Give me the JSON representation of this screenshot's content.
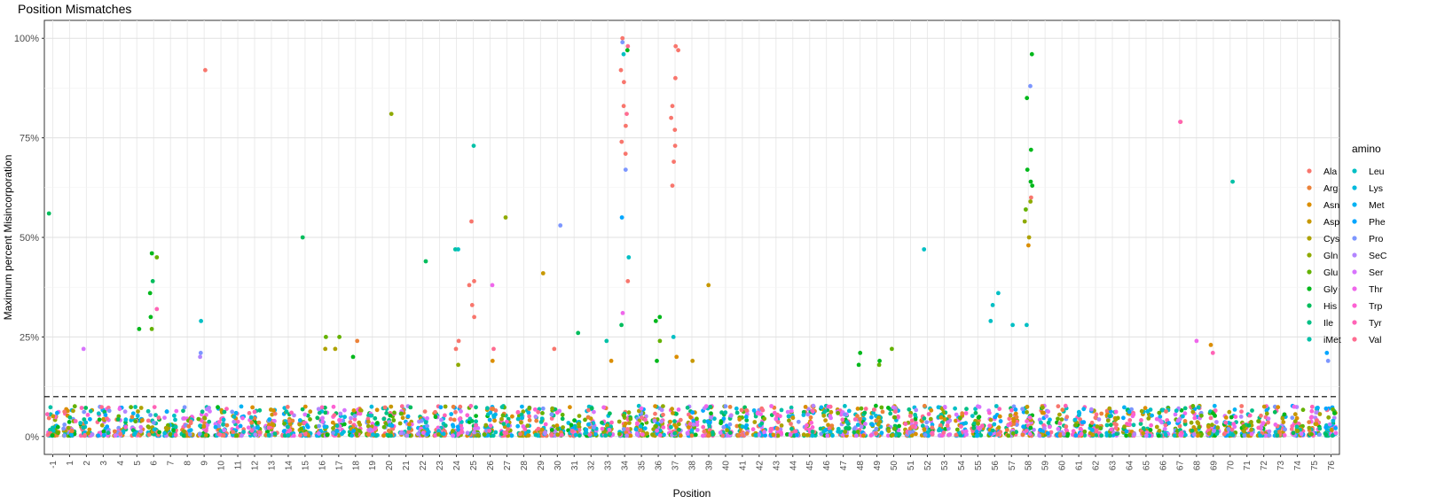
{
  "chart_data": {
    "type": "scatter",
    "title": "Position Mismatches",
    "xlabel": "Position",
    "ylabel": "Maximum percent Misincorporation",
    "ylim": [
      -0.045,
      1.045
    ],
    "y_ticks": [
      0,
      0.25,
      0.5,
      0.75,
      1.0
    ],
    "y_tick_labels": [
      "0%",
      "25%",
      "50%",
      "75%",
      "100%"
    ],
    "categories": [
      "-1",
      "1",
      "2",
      "3",
      "4",
      "5",
      "6",
      "7",
      "8",
      "9",
      "10",
      "11",
      "12",
      "13",
      "14",
      "15",
      "16",
      "17",
      "18",
      "19",
      "20",
      "21",
      "22",
      "23",
      "24",
      "25",
      "26",
      "27",
      "28",
      "29",
      "30",
      "31",
      "32",
      "33",
      "34",
      "35",
      "36",
      "37",
      "38",
      "39",
      "40",
      "41",
      "42",
      "43",
      "44",
      "45",
      "46",
      "47",
      "48",
      "49",
      "50",
      "51",
      "52",
      "53",
      "54",
      "55",
      "56",
      "57",
      "58",
      "59",
      "60",
      "61",
      "62",
      "63",
      "64",
      "65",
      "66",
      "67",
      "68",
      "69",
      "70",
      "71",
      "72",
      "73",
      "74",
      "75",
      "76"
    ],
    "threshold_line": 0.1,
    "grid": true,
    "legend": {
      "title": "amino",
      "position": "right",
      "entries": [
        {
          "name": "Ala",
          "color": "#F8766D"
        },
        {
          "name": "Arg",
          "color": "#EC8239"
        },
        {
          "name": "Asn",
          "color": "#DB8E00"
        },
        {
          "name": "Asp",
          "color": "#C79800"
        },
        {
          "name": "Cys",
          "color": "#AEA200"
        },
        {
          "name": "Gln",
          "color": "#8FAA00"
        },
        {
          "name": "Glu",
          "color": "#64B200"
        },
        {
          "name": "Gly",
          "color": "#00B81B"
        },
        {
          "name": "His",
          "color": "#00BD5C"
        },
        {
          "name": "Ile",
          "color": "#00C085"
        },
        {
          "name": "iMet",
          "color": "#00C1A7"
        },
        {
          "name": "Leu",
          "color": "#00BFC4"
        },
        {
          "name": "Lys",
          "color": "#00BADE"
        },
        {
          "name": "Met",
          "color": "#00B2F3"
        },
        {
          "name": "Phe",
          "color": "#00A6FF"
        },
        {
          "name": "Pro",
          "color": "#7C96FF"
        },
        {
          "name": "SeC",
          "color": "#B385FF"
        },
        {
          "name": "Ser",
          "color": "#D874FD"
        },
        {
          "name": "Thr",
          "color": "#EF67EB"
        },
        {
          "name": "Trp",
          "color": "#FD61D3"
        },
        {
          "name": "Tyr",
          "color": "#FF63B6"
        },
        {
          "name": "Val",
          "color": "#FF6C91"
        }
      ]
    },
    "notable_points": [
      {
        "x": "-1",
        "y": 0.56,
        "series": "His"
      },
      {
        "x": "6",
        "y": 0.46,
        "series": "Gly"
      },
      {
        "x": "6",
        "y": 0.45,
        "series": "Glu"
      },
      {
        "x": "6",
        "y": 0.39,
        "series": "His"
      },
      {
        "x": "6",
        "y": 0.36,
        "series": "Gly"
      },
      {
        "x": "6",
        "y": 0.32,
        "series": "Tyr"
      },
      {
        "x": "6",
        "y": 0.3,
        "series": "Gly"
      },
      {
        "x": "6",
        "y": 0.27,
        "series": "Glu"
      },
      {
        "x": "5",
        "y": 0.27,
        "series": "Gly"
      },
      {
        "x": "9",
        "y": 0.92,
        "series": "Ala"
      },
      {
        "x": "9",
        "y": 0.29,
        "series": "Leu"
      },
      {
        "x": "9",
        "y": 0.21,
        "series": "Pro"
      },
      {
        "x": "9",
        "y": 0.2,
        "series": "SeC"
      },
      {
        "x": "2",
        "y": 0.22,
        "series": "Ser"
      },
      {
        "x": "15",
        "y": 0.5,
        "series": "His"
      },
      {
        "x": "16",
        "y": 0.25,
        "series": "Glu"
      },
      {
        "x": "16",
        "y": 0.22,
        "series": "Cys"
      },
      {
        "x": "17",
        "y": 0.25,
        "series": "Glu"
      },
      {
        "x": "17",
        "y": 0.22,
        "series": "Cys"
      },
      {
        "x": "18",
        "y": 0.24,
        "series": "Arg"
      },
      {
        "x": "18",
        "y": 0.2,
        "series": "Gly"
      },
      {
        "x": "20",
        "y": 0.81,
        "series": "Gln"
      },
      {
        "x": "22",
        "y": 0.44,
        "series": "His"
      },
      {
        "x": "24",
        "y": 0.47,
        "series": "Leu"
      },
      {
        "x": "24",
        "y": 0.47,
        "series": "iMet"
      },
      {
        "x": "24",
        "y": 0.24,
        "series": "Ala"
      },
      {
        "x": "24",
        "y": 0.22,
        "series": "Ala"
      },
      {
        "x": "24",
        "y": 0.18,
        "series": "Gln"
      },
      {
        "x": "25",
        "y": 0.73,
        "series": "iMet"
      },
      {
        "x": "25",
        "y": 0.54,
        "series": "Ala"
      },
      {
        "x": "25",
        "y": 0.39,
        "series": "Ala"
      },
      {
        "x": "25",
        "y": 0.38,
        "series": "Ala"
      },
      {
        "x": "25",
        "y": 0.33,
        "series": "Ala"
      },
      {
        "x": "25",
        "y": 0.3,
        "series": "Ala"
      },
      {
        "x": "26",
        "y": 0.38,
        "series": "Thr"
      },
      {
        "x": "26",
        "y": 0.22,
        "series": "Val"
      },
      {
        "x": "26",
        "y": 0.19,
        "series": "Asn"
      },
      {
        "x": "27",
        "y": 0.55,
        "series": "Gln"
      },
      {
        "x": "29",
        "y": 0.41,
        "series": "Asp"
      },
      {
        "x": "30",
        "y": 0.53,
        "series": "Pro"
      },
      {
        "x": "30",
        "y": 0.22,
        "series": "Ala"
      },
      {
        "x": "31",
        "y": 0.26,
        "series": "His"
      },
      {
        "x": "34",
        "y": 1.0,
        "series": "Ala"
      },
      {
        "x": "34",
        "y": 0.99,
        "series": "Pro"
      },
      {
        "x": "34",
        "y": 0.98,
        "series": "Val"
      },
      {
        "x": "34",
        "y": 0.97,
        "series": "Gly"
      },
      {
        "x": "34",
        "y": 0.96,
        "series": "Leu"
      },
      {
        "x": "34",
        "y": 0.92,
        "series": "Ala"
      },
      {
        "x": "34",
        "y": 0.89,
        "series": "Ala"
      },
      {
        "x": "34",
        "y": 0.83,
        "series": "Ala"
      },
      {
        "x": "34",
        "y": 0.81,
        "series": "Val"
      },
      {
        "x": "34",
        "y": 0.78,
        "series": "Ala"
      },
      {
        "x": "34",
        "y": 0.74,
        "series": "Ala"
      },
      {
        "x": "34",
        "y": 0.71,
        "series": "Ala"
      },
      {
        "x": "34",
        "y": 0.67,
        "series": "Pro"
      },
      {
        "x": "34",
        "y": 0.55,
        "series": "Phe"
      },
      {
        "x": "34",
        "y": 0.45,
        "series": "Leu"
      },
      {
        "x": "34",
        "y": 0.39,
        "series": "Ala"
      },
      {
        "x": "34",
        "y": 0.31,
        "series": "Thr"
      },
      {
        "x": "34",
        "y": 0.28,
        "series": "His"
      },
      {
        "x": "33",
        "y": 0.24,
        "series": "iMet"
      },
      {
        "x": "33",
        "y": 0.19,
        "series": "Asn"
      },
      {
        "x": "36",
        "y": 0.3,
        "series": "Gly"
      },
      {
        "x": "36",
        "y": 0.29,
        "series": "Gly"
      },
      {
        "x": "36",
        "y": 0.24,
        "series": "Glu"
      },
      {
        "x": "36",
        "y": 0.19,
        "series": "Gly"
      },
      {
        "x": "37",
        "y": 0.98,
        "series": "Ala"
      },
      {
        "x": "37",
        "y": 0.97,
        "series": "Ala"
      },
      {
        "x": "37",
        "y": 0.9,
        "series": "Ala"
      },
      {
        "x": "37",
        "y": 0.83,
        "series": "Ala"
      },
      {
        "x": "37",
        "y": 0.8,
        "series": "Ala"
      },
      {
        "x": "37",
        "y": 0.77,
        "series": "Ala"
      },
      {
        "x": "37",
        "y": 0.73,
        "series": "Ala"
      },
      {
        "x": "37",
        "y": 0.69,
        "series": "Ala"
      },
      {
        "x": "37",
        "y": 0.63,
        "series": "Ala"
      },
      {
        "x": "37",
        "y": 0.25,
        "series": "Leu"
      },
      {
        "x": "37",
        "y": 0.2,
        "series": "Asn"
      },
      {
        "x": "38",
        "y": 0.19,
        "series": "Asp"
      },
      {
        "x": "39",
        "y": 0.38,
        "series": "Asp"
      },
      {
        "x": "48",
        "y": 0.21,
        "series": "Gly"
      },
      {
        "x": "48",
        "y": 0.18,
        "series": "Gly"
      },
      {
        "x": "49",
        "y": 0.19,
        "series": "Gly"
      },
      {
        "x": "49",
        "y": 0.18,
        "series": "Glu"
      },
      {
        "x": "50",
        "y": 0.22,
        "series": "Glu"
      },
      {
        "x": "52",
        "y": 0.47,
        "series": "Leu"
      },
      {
        "x": "56",
        "y": 0.36,
        "series": "Leu"
      },
      {
        "x": "56",
        "y": 0.33,
        "series": "Leu"
      },
      {
        "x": "56",
        "y": 0.29,
        "series": "Leu"
      },
      {
        "x": "57",
        "y": 0.28,
        "series": "Leu"
      },
      {
        "x": "58",
        "y": 0.96,
        "series": "Gly"
      },
      {
        "x": "58",
        "y": 0.88,
        "series": "Pro"
      },
      {
        "x": "58",
        "y": 0.85,
        "series": "Gly"
      },
      {
        "x": "58",
        "y": 0.72,
        "series": "Gly"
      },
      {
        "x": "58",
        "y": 0.67,
        "series": "Gly"
      },
      {
        "x": "58",
        "y": 0.64,
        "series": "Gly"
      },
      {
        "x": "58",
        "y": 0.63,
        "series": "Gly"
      },
      {
        "x": "58",
        "y": 0.6,
        "series": "Ala"
      },
      {
        "x": "58",
        "y": 0.59,
        "series": "Gln"
      },
      {
        "x": "58",
        "y": 0.57,
        "series": "Glu"
      },
      {
        "x": "58",
        "y": 0.54,
        "series": "Gln"
      },
      {
        "x": "58",
        "y": 0.5,
        "series": "Cys"
      },
      {
        "x": "58",
        "y": 0.48,
        "series": "Asn"
      },
      {
        "x": "58",
        "y": 0.28,
        "series": "Leu"
      },
      {
        "x": "67",
        "y": 0.79,
        "series": "Ala"
      },
      {
        "x": "67",
        "y": 0.79,
        "series": "Tyr"
      },
      {
        "x": "68",
        "y": 0.24,
        "series": "Thr"
      },
      {
        "x": "69",
        "y": 0.23,
        "series": "Asn"
      },
      {
        "x": "69",
        "y": 0.21,
        "series": "Tyr"
      },
      {
        "x": "70",
        "y": 0.64,
        "series": "iMet"
      },
      {
        "x": "76",
        "y": 0.21,
        "series": "Phe"
      },
      {
        "x": "76",
        "y": 0.19,
        "series": "Pro"
      }
    ]
  }
}
